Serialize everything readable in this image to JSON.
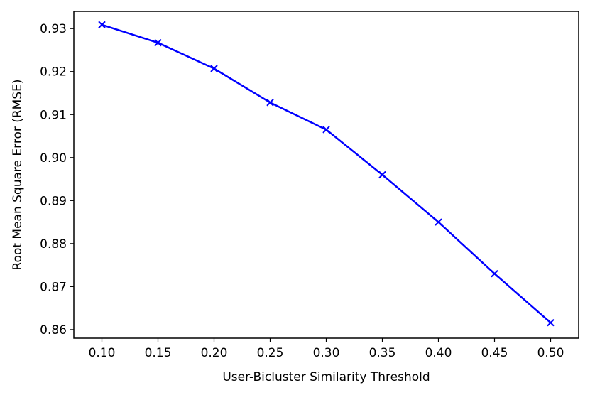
{
  "chart_data": {
    "type": "line",
    "title": "",
    "xlabel": "User-Bicluster Similarity Threshold",
    "ylabel": "Root Mean Square Error (RMSE)",
    "x": [
      0.1,
      0.15,
      0.2,
      0.25,
      0.3,
      0.35,
      0.4,
      0.45,
      0.5
    ],
    "x_tick_labels": [
      "0.10",
      "0.15",
      "0.20",
      "0.25",
      "0.30",
      "0.35",
      "0.40",
      "0.45",
      "0.50"
    ],
    "y_ticks": [
      0.86,
      0.87,
      0.88,
      0.89,
      0.9,
      0.91,
      0.92,
      0.93
    ],
    "y_tick_labels": [
      "0.86",
      "0.87",
      "0.88",
      "0.89",
      "0.90",
      "0.91",
      "0.92",
      "0.93"
    ],
    "series": [
      {
        "values": [
          0.9309,
          0.9267,
          0.9207,
          0.9128,
          0.9065,
          0.896,
          0.885,
          0.873,
          0.8616
        ],
        "color": "#0000ff",
        "marker": "x"
      }
    ],
    "xlim": [
      0.075,
      0.525
    ],
    "ylim": [
      0.858,
      0.934
    ],
    "grid": false,
    "legend": "none"
  }
}
